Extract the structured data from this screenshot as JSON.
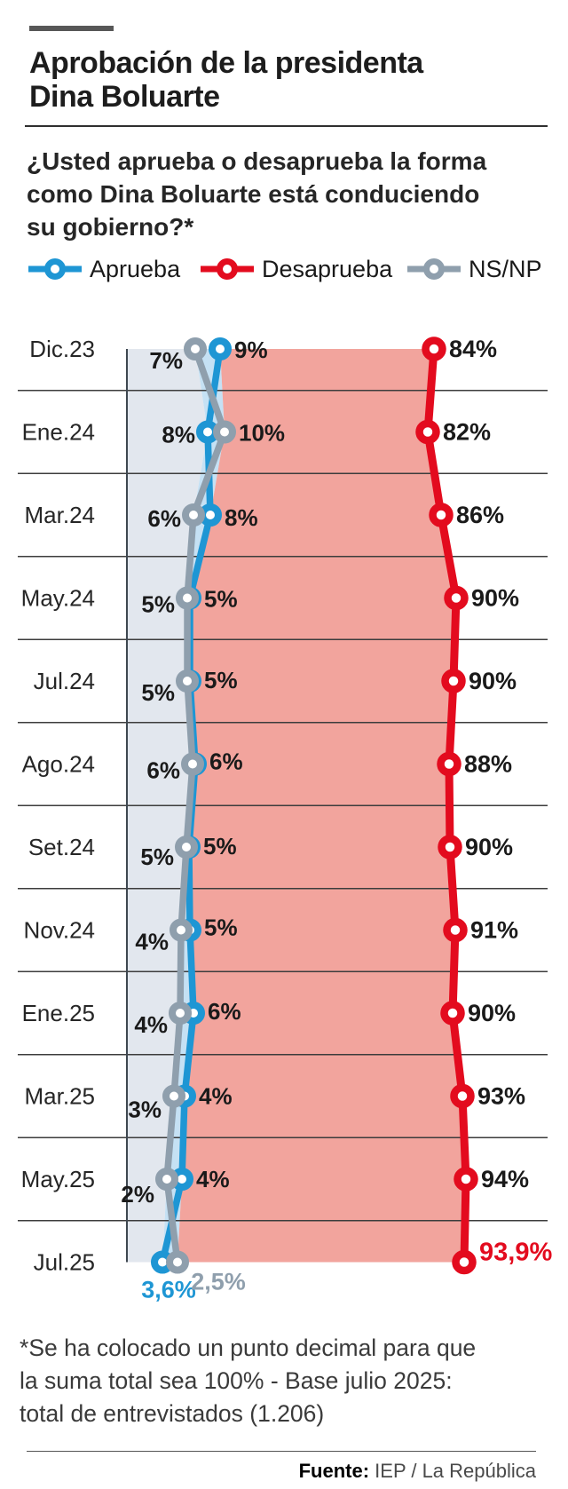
{
  "header": {
    "title_lines": [
      "Aprobación de la presidenta",
      "Dina Boluarte"
    ],
    "question_lines": [
      "¿Usted aprueba o desaprueba la forma",
      "como Dina Boluarte está conduciendo",
      "su gobierno?*"
    ]
  },
  "legend": [
    {
      "label": "Aprueba",
      "color": "#1e96d4"
    },
    {
      "label": "Desaprueba",
      "color": "#e30b1e"
    },
    {
      "label": "NS/NP",
      "color": "#8f9fad"
    }
  ],
  "chart_data": {
    "type": "line",
    "orientation": "vertical-timeline",
    "title": "Aprobación de la presidenta Dina Boluarte",
    "categories": [
      "Dic.23",
      "Ene.24",
      "Mar.24",
      "May.24",
      "Jul.24",
      "Ago.24",
      "Set.24",
      "Nov.24",
      "Ene.25",
      "Mar.25",
      "May.25",
      "Jul.25"
    ],
    "series": [
      {
        "name": "Aprueba",
        "color": "#1e96d4",
        "values": [
          9,
          8,
          8,
          5,
          5,
          6,
          5,
          5,
          6,
          4,
          4,
          3.6
        ],
        "labels": [
          "9%",
          "8%",
          "8%",
          "5%",
          "5%",
          "6%",
          "5%",
          "5%",
          "6%",
          "4%",
          "4%",
          "3,6%"
        ]
      },
      {
        "name": "Desaprueba",
        "color": "#e30b1e",
        "values": [
          84,
          82,
          86,
          90,
          90,
          88,
          90,
          91,
          90,
          93,
          94,
          93.9
        ],
        "labels": [
          "84%",
          "82%",
          "86%",
          "90%",
          "90%",
          "88%",
          "90%",
          "91%",
          "90%",
          "93%",
          "94%",
          "93,9%"
        ]
      },
      {
        "name": "NS/NP",
        "color": "#8f9fad",
        "values": [
          7,
          10,
          6,
          5,
          5,
          6,
          5,
          4,
          4,
          3,
          2,
          2.5
        ],
        "labels": [
          "7%",
          "10%",
          "6%",
          "5%",
          "5%",
          "6%",
          "5%",
          "4%",
          "4%",
          "3%",
          "2%",
          "2,5%"
        ]
      }
    ],
    "xlim": [
      0,
      100
    ],
    "grid": true,
    "legend_position": "top",
    "area_fill_colors": {
      "left_band": "#e2e7ee",
      "middle_band": "#c5e1f4",
      "disapprove_band": "#f2a49d"
    }
  },
  "footnote_lines": [
    "*Se ha colocado un punto decimal para que",
    "la suma total sea 100% - Base julio 2025:",
    "total de entrevistados (1.206)"
  ],
  "source": {
    "label": "Fuente:",
    "text": "IEP / La República"
  }
}
